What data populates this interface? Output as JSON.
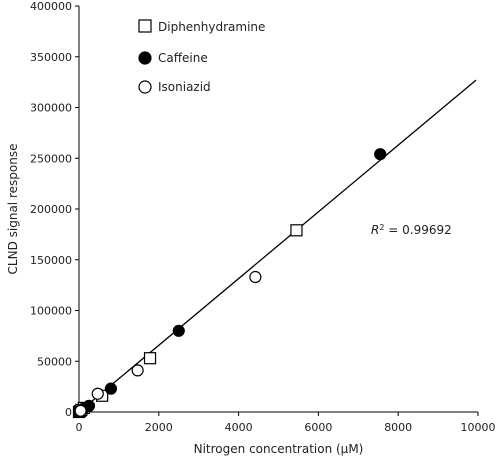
{
  "chart_data": {
    "type": "scatter",
    "title": "",
    "xlabel": "Nitrogen concentration (μM)",
    "ylabel": "CLND signal response",
    "xlim": [
      0,
      10000
    ],
    "ylim": [
      0,
      400000
    ],
    "x_ticks": [
      "0",
      "2000",
      "4000",
      "6000",
      "8000",
      "10000"
    ],
    "y_ticks": [
      "0",
      "50000",
      "100000",
      "150000",
      "200000",
      "250000",
      "300000",
      "350000",
      "400000"
    ],
    "legend_position": "top-left",
    "series": [
      {
        "name": "Diphenhydramine",
        "marker": "open-square",
        "points": [
          [
            0,
            0
          ],
          [
            30,
            1000
          ],
          [
            60,
            2000
          ],
          [
            120,
            4000
          ],
          [
            580,
            16000
          ],
          [
            1780,
            53000
          ],
          [
            5450,
            179000
          ]
        ]
      },
      {
        "name": "Caffeine",
        "marker": "filled-circle",
        "points": [
          [
            10,
            500
          ],
          [
            50,
            1500
          ],
          [
            100,
            3000
          ],
          [
            250,
            6000
          ],
          [
            800,
            23000
          ],
          [
            2500,
            80000
          ],
          [
            7550,
            254000
          ]
        ]
      },
      {
        "name": "Isoniazid",
        "marker": "open-circle",
        "points": [
          [
            15,
            500
          ],
          [
            40,
            1200
          ],
          [
            470,
            18000
          ],
          [
            1470,
            41000
          ],
          [
            4420,
            133000
          ]
        ]
      }
    ],
    "fit_line": {
      "x": [
        0,
        9950
      ],
      "y": [
        0,
        327000
      ]
    },
    "annotation": {
      "r2_symbol": "R",
      "r2_superscript": "2",
      "r2_text": " = 0.99692"
    }
  }
}
